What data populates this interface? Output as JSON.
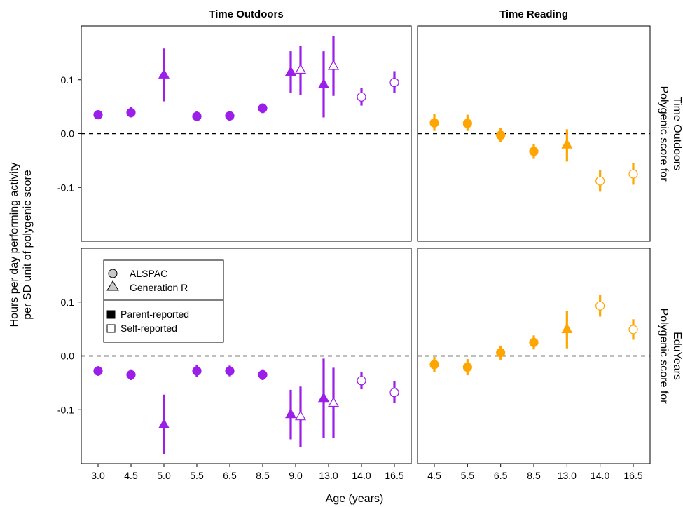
{
  "chart_data": {
    "type": "scatter",
    "subtype": "point-range with error bars, faceted 2x2",
    "xlabel": "Age (years)",
    "ylabel_lines": [
      "Hours per day performing activity",
      "per SD unit of polygenic score"
    ],
    "ylim": [
      -0.2,
      0.2
    ],
    "yticks": [
      -0.1,
      0.0,
      0.1
    ],
    "ytick_labels": [
      "-0.1",
      "0.0",
      "0.1"
    ],
    "reference_line": {
      "y": 0.0,
      "style": "dashed"
    },
    "grid": false,
    "colors": {
      "outdoors": "#9b1fe8",
      "reading": "#ffa500"
    },
    "columns": [
      {
        "title": "Time Outdoors",
        "color_key": "outdoors",
        "categories": [
          "3.0",
          "4.5",
          "5.0",
          "5.5",
          "6.5",
          "8.5",
          "9.0",
          "13.0",
          "14.0",
          "16.5"
        ]
      },
      {
        "title": "Time Reading",
        "color_key": "reading",
        "categories": [
          "4.5",
          "5.5",
          "6.5",
          "8.5",
          "13.0",
          "14.0",
          "16.5"
        ]
      }
    ],
    "rows": [
      {
        "strip_lines": [
          "Polygenic score for",
          "Time Outdoors"
        ]
      },
      {
        "strip_lines": [
          "Polygenic score for",
          "EduYears"
        ]
      }
    ],
    "panels": [
      {
        "row": 0,
        "col": 0,
        "points": [
          {
            "age": "3.0",
            "cohort": "ALSPAC",
            "reporter": "Parent",
            "est": 0.035,
            "lo": 0.028,
            "hi": 0.042
          },
          {
            "age": "4.5",
            "cohort": "ALSPAC",
            "reporter": "Parent",
            "est": 0.039,
            "lo": 0.03,
            "hi": 0.049
          },
          {
            "age": "5.0",
            "cohort": "Generation R",
            "reporter": "Parent",
            "est": 0.11,
            "lo": 0.06,
            "hi": 0.158
          },
          {
            "age": "5.5",
            "cohort": "ALSPAC",
            "reporter": "Parent",
            "est": 0.032,
            "lo": 0.023,
            "hi": 0.041
          },
          {
            "age": "6.5",
            "cohort": "ALSPAC",
            "reporter": "Parent",
            "est": 0.033,
            "lo": 0.024,
            "hi": 0.042
          },
          {
            "age": "8.5",
            "cohort": "ALSPAC",
            "reporter": "Parent",
            "est": 0.047,
            "lo": 0.038,
            "hi": 0.056
          },
          {
            "age": "9.0",
            "cohort": "Generation R",
            "reporter": "Parent",
            "est": 0.115,
            "lo": 0.076,
            "hi": 0.153,
            "dodge": -1
          },
          {
            "age": "9.0",
            "cohort": "Generation R",
            "reporter": "Self",
            "est": 0.119,
            "lo": 0.071,
            "hi": 0.163,
            "dodge": 1
          },
          {
            "age": "13.0",
            "cohort": "Generation R",
            "reporter": "Parent",
            "est": 0.092,
            "lo": 0.03,
            "hi": 0.153,
            "dodge": -1
          },
          {
            "age": "13.0",
            "cohort": "Generation R",
            "reporter": "Self",
            "est": 0.126,
            "lo": 0.07,
            "hi": 0.181,
            "dodge": 1
          },
          {
            "age": "14.0",
            "cohort": "ALSPAC",
            "reporter": "Self",
            "est": 0.068,
            "lo": 0.052,
            "hi": 0.085
          },
          {
            "age": "16.5",
            "cohort": "ALSPAC",
            "reporter": "Self",
            "est": 0.095,
            "lo": 0.075,
            "hi": 0.116
          }
        ]
      },
      {
        "row": 0,
        "col": 1,
        "points": [
          {
            "age": "4.5",
            "cohort": "ALSPAC",
            "reporter": "Parent",
            "est": 0.02,
            "lo": 0.005,
            "hi": 0.036
          },
          {
            "age": "5.5",
            "cohort": "ALSPAC",
            "reporter": "Parent",
            "est": 0.019,
            "lo": 0.005,
            "hi": 0.035
          },
          {
            "age": "6.5",
            "cohort": "ALSPAC",
            "reporter": "Parent",
            "est": -0.003,
            "lo": -0.015,
            "hi": 0.01
          },
          {
            "age": "8.5",
            "cohort": "ALSPAC",
            "reporter": "Parent",
            "est": -0.033,
            "lo": -0.047,
            "hi": -0.02
          },
          {
            "age": "13.0",
            "cohort": "Generation R",
            "reporter": "Parent",
            "est": -0.02,
            "lo": -0.052,
            "hi": 0.008
          },
          {
            "age": "14.0",
            "cohort": "ALSPAC",
            "reporter": "Self",
            "est": -0.088,
            "lo": -0.108,
            "hi": -0.068
          },
          {
            "age": "16.5",
            "cohort": "ALSPAC",
            "reporter": "Self",
            "est": -0.075,
            "lo": -0.095,
            "hi": -0.055
          }
        ]
      },
      {
        "row": 1,
        "col": 0,
        "points": [
          {
            "age": "3.0",
            "cohort": "ALSPAC",
            "reporter": "Parent",
            "est": -0.028,
            "lo": -0.037,
            "hi": -0.019
          },
          {
            "age": "4.5",
            "cohort": "ALSPAC",
            "reporter": "Parent",
            "est": -0.035,
            "lo": -0.045,
            "hi": -0.025
          },
          {
            "age": "5.0",
            "cohort": "Generation R",
            "reporter": "Parent",
            "est": -0.127,
            "lo": -0.183,
            "hi": -0.072
          },
          {
            "age": "5.5",
            "cohort": "ALSPAC",
            "reporter": "Parent",
            "est": -0.028,
            "lo": -0.039,
            "hi": -0.017
          },
          {
            "age": "6.5",
            "cohort": "ALSPAC",
            "reporter": "Parent",
            "est": -0.028,
            "lo": -0.038,
            "hi": -0.018
          },
          {
            "age": "8.5",
            "cohort": "ALSPAC",
            "reporter": "Parent",
            "est": -0.035,
            "lo": -0.045,
            "hi": -0.025
          },
          {
            "age": "9.0",
            "cohort": "Generation R",
            "reporter": "Parent",
            "est": -0.108,
            "lo": -0.155,
            "hi": -0.063,
            "dodge": -1
          },
          {
            "age": "9.0",
            "cohort": "Generation R",
            "reporter": "Self",
            "est": -0.112,
            "lo": -0.17,
            "hi": -0.057,
            "dodge": 1
          },
          {
            "age": "13.0",
            "cohort": "Generation R",
            "reporter": "Parent",
            "est": -0.078,
            "lo": -0.152,
            "hi": -0.005,
            "dodge": -1
          },
          {
            "age": "13.0",
            "cohort": "Generation R",
            "reporter": "Self",
            "est": -0.087,
            "lo": -0.152,
            "hi": -0.022,
            "dodge": 1
          },
          {
            "age": "14.0",
            "cohort": "ALSPAC",
            "reporter": "Self",
            "est": -0.046,
            "lo": -0.062,
            "hi": -0.03
          },
          {
            "age": "16.5",
            "cohort": "ALSPAC",
            "reporter": "Self",
            "est": -0.068,
            "lo": -0.088,
            "hi": -0.047
          }
        ]
      },
      {
        "row": 1,
        "col": 1,
        "points": [
          {
            "age": "4.5",
            "cohort": "ALSPAC",
            "reporter": "Parent",
            "est": -0.016,
            "lo": -0.03,
            "hi": -0.002
          },
          {
            "age": "5.5",
            "cohort": "ALSPAC",
            "reporter": "Parent",
            "est": -0.021,
            "lo": -0.036,
            "hi": -0.006
          },
          {
            "age": "6.5",
            "cohort": "ALSPAC",
            "reporter": "Parent",
            "est": 0.006,
            "lo": -0.007,
            "hi": 0.019
          },
          {
            "age": "8.5",
            "cohort": "ALSPAC",
            "reporter": "Parent",
            "est": 0.025,
            "lo": 0.012,
            "hi": 0.038
          },
          {
            "age": "13.0",
            "cohort": "Generation R",
            "reporter": "Parent",
            "est": 0.05,
            "lo": 0.014,
            "hi": 0.084
          },
          {
            "age": "14.0",
            "cohort": "ALSPAC",
            "reporter": "Self",
            "est": 0.093,
            "lo": 0.073,
            "hi": 0.113
          },
          {
            "age": "16.5",
            "cohort": "ALSPAC",
            "reporter": "Self",
            "est": 0.049,
            "lo": 0.03,
            "hi": 0.068
          }
        ]
      }
    ],
    "legend": {
      "placement": "inside bottom-left panel, top-left",
      "shape_entries": [
        {
          "shape": "circle",
          "label": "ALSPAC"
        },
        {
          "shape": "triangle",
          "label": "Generation R"
        }
      ],
      "fill_entries": [
        {
          "fill": "filled",
          "label": "Parent-reported"
        },
        {
          "fill": "hollow",
          "label": "Self-reported"
        }
      ]
    }
  }
}
